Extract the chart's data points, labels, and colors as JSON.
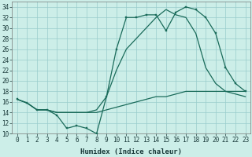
{
  "xlabel": "Humidex (Indice chaleur)",
  "bg_color": "#cceee8",
  "grid_color": "#99cccc",
  "line_color": "#1a6b5a",
  "xlim": [
    -0.5,
    23.5
  ],
  "ylim": [
    10,
    35
  ],
  "yticks": [
    10,
    12,
    14,
    16,
    18,
    20,
    22,
    24,
    26,
    28,
    30,
    32,
    34
  ],
  "xtick_labels": [
    "0",
    "1",
    "2",
    "3",
    "4",
    "5",
    "6",
    "7",
    "8",
    "9",
    "10",
    "11",
    "12",
    "13",
    "14",
    "15",
    "16",
    "17",
    "18",
    "19",
    "20",
    "21",
    "22",
    "23"
  ],
  "xtick_positions": [
    0,
    1,
    2,
    3,
    4,
    5,
    6,
    7,
    8,
    9,
    10,
    11,
    12,
    13,
    14,
    15,
    16,
    17,
    18,
    19,
    20,
    21,
    22,
    23
  ],
  "series1_x": [
    0,
    1,
    2,
    3,
    4,
    5,
    6,
    7,
    8,
    9,
    10,
    11,
    12,
    13,
    14,
    15,
    16,
    17,
    18,
    19,
    20,
    21,
    22,
    23
  ],
  "series1_y": [
    16.5,
    15.8,
    14.5,
    14.5,
    13.5,
    11.0,
    11.5,
    11.0,
    10.0,
    17.0,
    26.0,
    32.0,
    32.0,
    32.5,
    32.5,
    29.5,
    33.0,
    34.0,
    33.5,
    32.0,
    29.0,
    22.5,
    19.5,
    18.0
  ],
  "series2_x": [
    0,
    1,
    2,
    3,
    4,
    5,
    6,
    7,
    8,
    9,
    10,
    11,
    12,
    13,
    14,
    15,
    16,
    17,
    18,
    19,
    20,
    21,
    22,
    23
  ],
  "series2_y": [
    16.5,
    15.8,
    14.5,
    14.5,
    14.0,
    14.0,
    14.0,
    14.0,
    14.0,
    14.5,
    15.0,
    15.5,
    16.0,
    16.5,
    17.0,
    17.0,
    17.5,
    18.0,
    18.0,
    18.0,
    18.0,
    18.0,
    18.0,
    18.0
  ],
  "series3_x": [
    0,
    1,
    2,
    3,
    4,
    5,
    6,
    7,
    8,
    9,
    10,
    11,
    12,
    13,
    14,
    15,
    16,
    17,
    18,
    19,
    20,
    21,
    22,
    23
  ],
  "series3_y": [
    16.5,
    15.8,
    14.5,
    14.5,
    14.0,
    14.0,
    14.0,
    14.0,
    14.5,
    17.0,
    22.0,
    26.0,
    28.0,
    30.0,
    32.0,
    33.5,
    32.5,
    32.0,
    29.0,
    22.5,
    19.5,
    18.0,
    17.5,
    17.0
  ],
  "xlabel_fontsize": 6.5,
  "tick_fontsize": 5.5,
  "marker_size": 2.0,
  "line_width": 0.9
}
